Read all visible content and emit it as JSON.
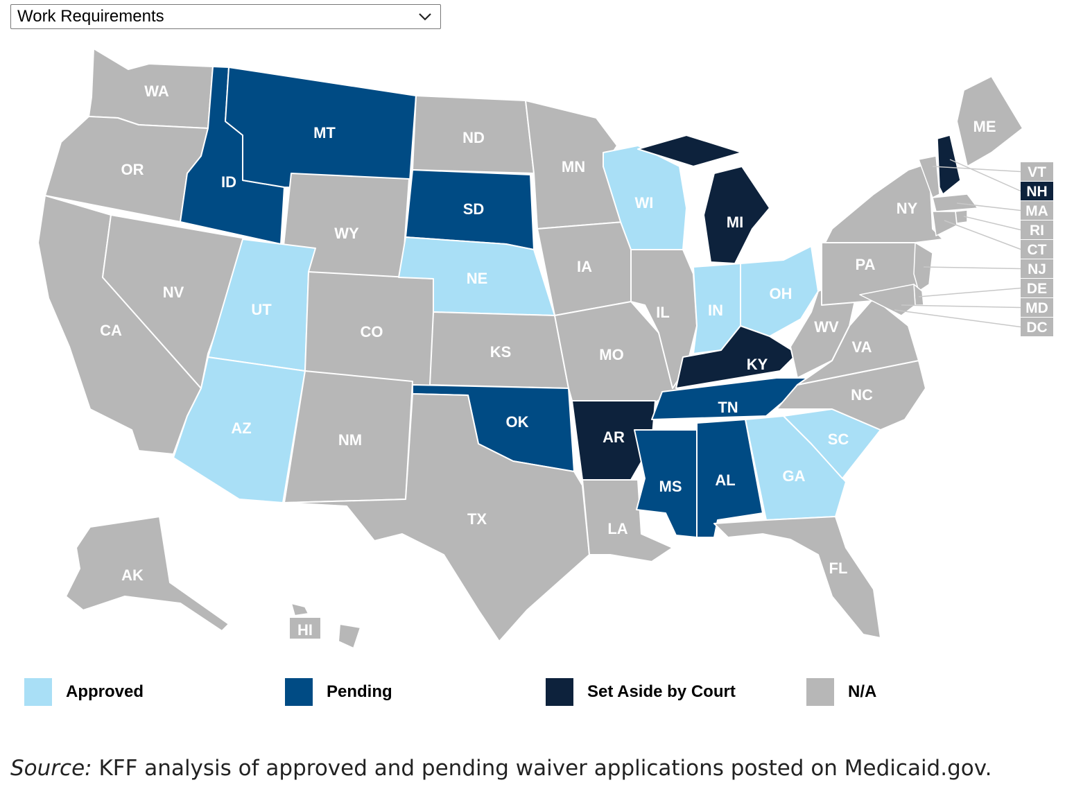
{
  "dropdown": {
    "selected": "Work Requirements",
    "icon": "chevron-down-icon"
  },
  "colors": {
    "approved": "#a9dff6",
    "pending": "#004b84",
    "set_aside": "#0d223c",
    "na": "#b7b7b7",
    "border": "#ffffff",
    "label_on_light": "#ffffff",
    "label_on_dark": "#ffffff"
  },
  "legend": [
    {
      "key": "approved",
      "label": "Approved"
    },
    {
      "key": "pending",
      "label": "Pending"
    },
    {
      "key": "set_aside",
      "label": "Set Aside by Court"
    },
    {
      "key": "na",
      "label": "N/A"
    }
  ],
  "states": [
    {
      "abbr": "WA",
      "status": "na"
    },
    {
      "abbr": "OR",
      "status": "na"
    },
    {
      "abbr": "CA",
      "status": "na"
    },
    {
      "abbr": "NV",
      "status": "na"
    },
    {
      "abbr": "ID",
      "status": "pending"
    },
    {
      "abbr": "MT",
      "status": "pending"
    },
    {
      "abbr": "WY",
      "status": "na"
    },
    {
      "abbr": "UT",
      "status": "approved"
    },
    {
      "abbr": "AZ",
      "status": "approved"
    },
    {
      "abbr": "CO",
      "status": "na"
    },
    {
      "abbr": "NM",
      "status": "na"
    },
    {
      "abbr": "ND",
      "status": "na"
    },
    {
      "abbr": "SD",
      "status": "pending"
    },
    {
      "abbr": "NE",
      "status": "approved"
    },
    {
      "abbr": "KS",
      "status": "na"
    },
    {
      "abbr": "OK",
      "status": "pending"
    },
    {
      "abbr": "TX",
      "status": "na"
    },
    {
      "abbr": "MN",
      "status": "na"
    },
    {
      "abbr": "IA",
      "status": "na"
    },
    {
      "abbr": "MO",
      "status": "na"
    },
    {
      "abbr": "AR",
      "status": "set_aside"
    },
    {
      "abbr": "LA",
      "status": "na"
    },
    {
      "abbr": "WI",
      "status": "approved"
    },
    {
      "abbr": "IL",
      "status": "na"
    },
    {
      "abbr": "MI",
      "status": "set_aside"
    },
    {
      "abbr": "IN",
      "status": "approved"
    },
    {
      "abbr": "OH",
      "status": "approved"
    },
    {
      "abbr": "KY",
      "status": "set_aside"
    },
    {
      "abbr": "TN",
      "status": "pending"
    },
    {
      "abbr": "MS",
      "status": "pending"
    },
    {
      "abbr": "AL",
      "status": "pending"
    },
    {
      "abbr": "GA",
      "status": "approved"
    },
    {
      "abbr": "FL",
      "status": "na"
    },
    {
      "abbr": "SC",
      "status": "approved"
    },
    {
      "abbr": "NC",
      "status": "na"
    },
    {
      "abbr": "VA",
      "status": "na"
    },
    {
      "abbr": "WV",
      "status": "na"
    },
    {
      "abbr": "PA",
      "status": "na"
    },
    {
      "abbr": "NY",
      "status": "na"
    },
    {
      "abbr": "ME",
      "status": "na"
    },
    {
      "abbr": "AK",
      "status": "na"
    },
    {
      "abbr": "HI",
      "status": "na"
    }
  ],
  "small_states": [
    {
      "abbr": "VT",
      "status": "na"
    },
    {
      "abbr": "NH",
      "status": "set_aside"
    },
    {
      "abbr": "MA",
      "status": "na"
    },
    {
      "abbr": "RI",
      "status": "na"
    },
    {
      "abbr": "CT",
      "status": "na"
    },
    {
      "abbr": "NJ",
      "status": "na"
    },
    {
      "abbr": "DE",
      "status": "na"
    },
    {
      "abbr": "MD",
      "status": "na"
    },
    {
      "abbr": "DC",
      "status": "na"
    }
  ],
  "source": {
    "prefix": "Source:",
    "text": " KFF analysis of approved and pending waiver applications posted on Medicaid.gov."
  }
}
